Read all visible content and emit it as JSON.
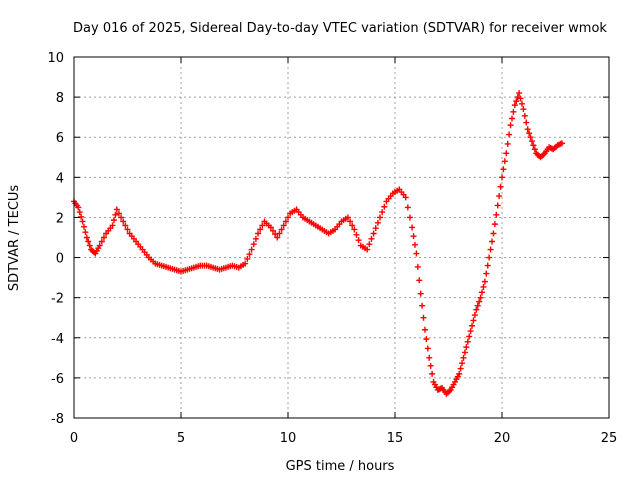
{
  "chart_data": {
    "type": "scatter",
    "title": "Day 016 of 2025, Sidereal Day-to-day VTEC variation (SDTVAR) for receiver wmok",
    "xlabel": "GPS time / hours",
    "ylabel": "SDTVAR / TECUs",
    "xlim": [
      0,
      25
    ],
    "ylim": [
      -8,
      10
    ],
    "xticks": [
      0,
      5,
      10,
      15,
      20,
      25
    ],
    "yticks": [
      -8,
      -6,
      -4,
      -2,
      0,
      2,
      4,
      6,
      8,
      10
    ],
    "grid": true,
    "marker": "+",
    "series": [
      {
        "name": "SDTVAR",
        "color": "#ff0000",
        "x": [
          0.0,
          0.2,
          0.4,
          0.6,
          0.8,
          1.0,
          1.2,
          1.5,
          1.8,
          2.0,
          2.3,
          2.6,
          2.9,
          3.2,
          3.5,
          3.8,
          4.1,
          4.4,
          4.7,
          5.0,
          5.3,
          5.6,
          5.9,
          6.2,
          6.5,
          6.8,
          7.1,
          7.4,
          7.7,
          8.0,
          8.3,
          8.6,
          8.9,
          9.2,
          9.5,
          9.8,
          10.1,
          10.4,
          10.7,
          11.0,
          11.3,
          11.6,
          11.9,
          12.2,
          12.5,
          12.8,
          13.1,
          13.4,
          13.7,
          14.0,
          14.3,
          14.6,
          14.9,
          15.2,
          15.5,
          15.8,
          16.0,
          16.2,
          16.4,
          16.6,
          16.8,
          17.0,
          17.2,
          17.4,
          17.6,
          17.8,
          18.0,
          18.2,
          18.4,
          18.6,
          18.8,
          19.0,
          19.2,
          19.4,
          19.6,
          19.8,
          20.0,
          20.2,
          20.4,
          20.6,
          20.8,
          21.0,
          21.2,
          21.4,
          21.6,
          21.8,
          22.0,
          22.2,
          22.4,
          22.6,
          22.8
        ],
        "y": [
          2.8,
          2.5,
          1.8,
          1.0,
          0.4,
          0.2,
          0.6,
          1.2,
          1.6,
          2.4,
          1.8,
          1.2,
          0.8,
          0.4,
          0.0,
          -0.3,
          -0.4,
          -0.5,
          -0.6,
          -0.7,
          -0.6,
          -0.5,
          -0.4,
          -0.4,
          -0.5,
          -0.6,
          -0.5,
          -0.4,
          -0.5,
          -0.3,
          0.4,
          1.2,
          1.8,
          1.5,
          1.0,
          1.6,
          2.2,
          2.4,
          2.0,
          1.8,
          1.6,
          1.4,
          1.2,
          1.4,
          1.8,
          2.0,
          1.4,
          0.6,
          0.4,
          1.2,
          2.0,
          2.8,
          3.2,
          3.4,
          3.0,
          1.5,
          0.2,
          -1.8,
          -3.6,
          -5.0,
          -6.2,
          -6.6,
          -6.5,
          -6.8,
          -6.6,
          -6.2,
          -5.8,
          -5.0,
          -4.2,
          -3.4,
          -2.6,
          -2.0,
          -1.2,
          0.0,
          1.2,
          2.6,
          4.0,
          5.2,
          6.6,
          7.6,
          8.2,
          7.4,
          6.4,
          5.8,
          5.2,
          5.0,
          5.2,
          5.5,
          5.4,
          5.6,
          5.7
        ]
      }
    ]
  }
}
